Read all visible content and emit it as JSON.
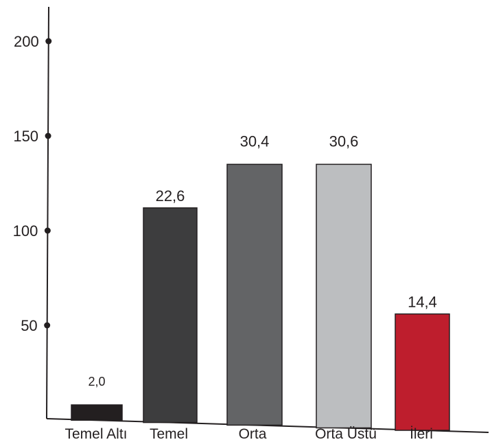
{
  "chart_data": {
    "type": "bar",
    "title": "",
    "xlabel": "",
    "ylabel": "",
    "ylim": [
      0,
      220
    ],
    "yticks": [
      50,
      100,
      150,
      200
    ],
    "yticks_labels": [
      "50",
      "100",
      "150",
      "200"
    ],
    "grid": false,
    "legend": "none",
    "categories": [
      "Temel Altı",
      "Temel",
      "Orta",
      "Orta Üstü",
      "İleri"
    ],
    "values": [
      8,
      112,
      135,
      135,
      56
    ],
    "data_labels": [
      "2,0",
      "22,6",
      "30,4",
      "30,6",
      "14,4"
    ],
    "colors": [
      "#231f20",
      "#3d3d3e",
      "#636466",
      "#bcbec0",
      "#be1e2d"
    ],
    "axis_color": "#231f20",
    "bar_outline_color": "#231f20"
  }
}
